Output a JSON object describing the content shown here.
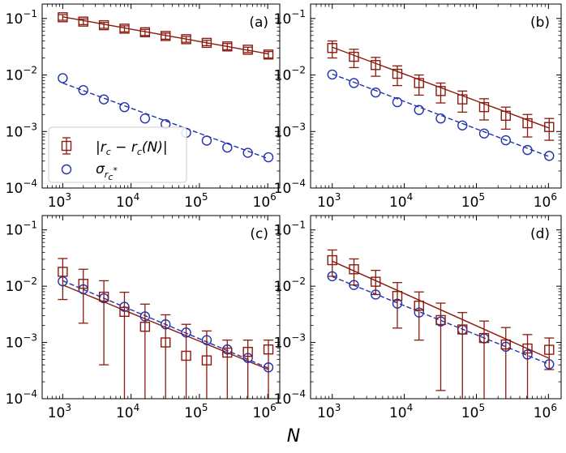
{
  "colors": {
    "series_a": "#8b1a0e",
    "series_b": "#2233aa",
    "axes": "#000000"
  },
  "chart_data": [
    {
      "type": "scatter",
      "panel": "(a)",
      "xscale": "log",
      "yscale": "log",
      "xlim": [
        500,
        1500000
      ],
      "ylim": [
        0.0001,
        0.18
      ],
      "x": [
        1000,
        2000,
        4000,
        8000,
        16000,
        32000,
        64000,
        128000,
        256000,
        512000,
        1024000
      ],
      "series": [
        {
          "name": "|r_c - r_c(N)|",
          "marker": "square",
          "values": [
            0.105,
            0.088,
            0.076,
            0.066,
            0.057,
            0.049,
            0.043,
            0.037,
            0.032,
            0.028,
            0.023
          ],
          "yerr": [
            0.012,
            0.01,
            0.009,
            0.008,
            0.007,
            0.006,
            0.005,
            0.004,
            0.004,
            0.003,
            0.003
          ],
          "fit": [
            0.107,
            0.0236
          ]
        },
        {
          "name": "sigma_rc*",
          "marker": "circle",
          "values": [
            0.0088,
            0.0054,
            0.0037,
            0.0027,
            0.0017,
            0.00135,
            0.00095,
            0.00069,
            0.00052,
            0.00042,
            0.00035
          ],
          "fit": [
            0.0072,
            0.00033
          ]
        }
      ],
      "legend": {
        "position": "lower-left",
        "entries": [
          {
            "text": "|r",
            "sub": "c",
            "mid": " − r",
            "sub2": "c",
            "tail": "(N)|"
          },
          {
            "text": "σ",
            "sub": "r",
            "subsub": "c",
            "star": "*"
          }
        ]
      }
    },
    {
      "type": "scatter",
      "panel": "(b)",
      "xscale": "log",
      "yscale": "log",
      "xlim": [
        500,
        1500000
      ],
      "ylim": [
        0.0001,
        0.18
      ],
      "x": [
        1000,
        2000,
        4000,
        8000,
        16000,
        32000,
        64000,
        128000,
        256000,
        512000,
        1024000
      ],
      "series": [
        {
          "name": "|r_c - r_c(N)|",
          "marker": "square",
          "values": [
            0.03,
            0.021,
            0.015,
            0.0105,
            0.0072,
            0.0052,
            0.0037,
            0.0027,
            0.0019,
            0.0014,
            0.0012
          ],
          "yerr": [
            0.01,
            0.0075,
            0.0055,
            0.004,
            0.0028,
            0.002,
            0.0015,
            0.0011,
            0.0008,
            0.0006,
            0.0005
          ],
          "fit": [
            0.031,
            0.00115
          ]
        },
        {
          "name": "sigma_rc*",
          "marker": "circle",
          "values": [
            0.0102,
            0.0072,
            0.0049,
            0.0033,
            0.0024,
            0.0017,
            0.00128,
            0.00092,
            0.0007,
            0.00047,
            0.00037
          ],
          "fit": [
            0.0104,
            0.00036
          ]
        }
      ]
    },
    {
      "type": "scatter",
      "panel": "(c)",
      "xscale": "log",
      "yscale": "log",
      "xlim": [
        500,
        1500000
      ],
      "ylim": [
        0.0001,
        0.18
      ],
      "x": [
        1000,
        2000,
        4000,
        8000,
        16000,
        32000,
        64000,
        128000,
        256000,
        512000,
        1024000
      ],
      "series": [
        {
          "name": "|r_c - r_c(N)|",
          "marker": "square",
          "values": [
            0.018,
            0.011,
            0.0065,
            0.0035,
            0.0019,
            0.001,
            0.00058,
            0.00048,
            0.00066,
            0.00068,
            0.00075
          ],
          "yerr_low": [
            0.0122,
            0.0088,
            0.0061,
            0.0035,
            0.0019,
            0.001,
            0.00058,
            0.00048,
            0.00066,
            0.00068,
            0.00075
          ],
          "yerr_up": [
            0.013,
            0.009,
            0.006,
            0.0043,
            0.0029,
            0.0021,
            0.00152,
            0.00112,
            0.00044,
            0.00042,
            0.00035
          ],
          "fit": [
            0.0105,
            0.00033
          ]
        },
        {
          "name": "sigma_rc*",
          "marker": "circle",
          "values": [
            0.0122,
            0.0088,
            0.0061,
            0.0043,
            0.0029,
            0.0021,
            0.0015,
            0.0011,
            0.00075,
            0.00053,
            0.00036
          ],
          "fit": [
            0.0125,
            0.00035
          ]
        }
      ]
    },
    {
      "type": "scatter",
      "panel": "(d)",
      "xscale": "log",
      "yscale": "log",
      "xlim": [
        500,
        1500000
      ],
      "ylim": [
        0.0001,
        0.18
      ],
      "x": [
        1000,
        2000,
        4000,
        8000,
        16000,
        32000,
        64000,
        128000,
        256000,
        512000,
        1024000
      ],
      "series": [
        {
          "name": "|r_c - r_c(N)|",
          "marker": "square",
          "values": [
            0.029,
            0.02,
            0.012,
            0.0067,
            0.0045,
            0.0025,
            0.0017,
            0.0012,
            0.00092,
            0.00078,
            0.00074
          ],
          "yerr_low": [
            0.014,
            0.0095,
            0.0049,
            0.0049,
            0.0034,
            0.00236,
            0.0017,
            0.0012,
            0.00092,
            0.00078,
            0.00041
          ],
          "yerr_up": [
            0.015,
            0.0105,
            0.0071,
            0.0049,
            0.0034,
            0.0025,
            0.0017,
            0.0012,
            0.00092,
            0.0006,
            0.00046
          ],
          "fit": [
            0.0278,
            0.00052
          ]
        },
        {
          "name": "sigma_rc*",
          "marker": "circle",
          "values": [
            0.015,
            0.0105,
            0.0071,
            0.0049,
            0.0034,
            0.00236,
            0.00168,
            0.00118,
            0.00084,
            0.00061,
            0.00041
          ],
          "fit": [
            0.0148,
            0.00041
          ]
        }
      ]
    }
  ],
  "axis_ticks": {
    "x": [
      {
        "value": 1000,
        "base": "10",
        "exp": "3"
      },
      {
        "value": 10000,
        "base": "10",
        "exp": "4"
      },
      {
        "value": 100000,
        "base": "10",
        "exp": "5"
      },
      {
        "value": 1000000,
        "base": "10",
        "exp": "6"
      }
    ],
    "y": [
      {
        "value": 0.1,
        "base": "10",
        "exp": "−1"
      },
      {
        "value": 0.01,
        "base": "10",
        "exp": "−2"
      },
      {
        "value": 0.001,
        "base": "10",
        "exp": "−3"
      },
      {
        "value": 0.0001,
        "base": "10",
        "exp": "−4"
      }
    ]
  },
  "xlabel": "N"
}
